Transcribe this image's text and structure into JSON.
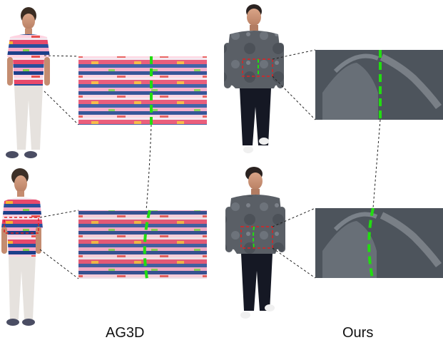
{
  "captions": {
    "left": "AG3D",
    "right": "Ours"
  },
  "colors": {
    "seam_line": "#22dd11",
    "selection_box": "#e02020",
    "connector": "#222222",
    "background": "#ffffff"
  }
}
